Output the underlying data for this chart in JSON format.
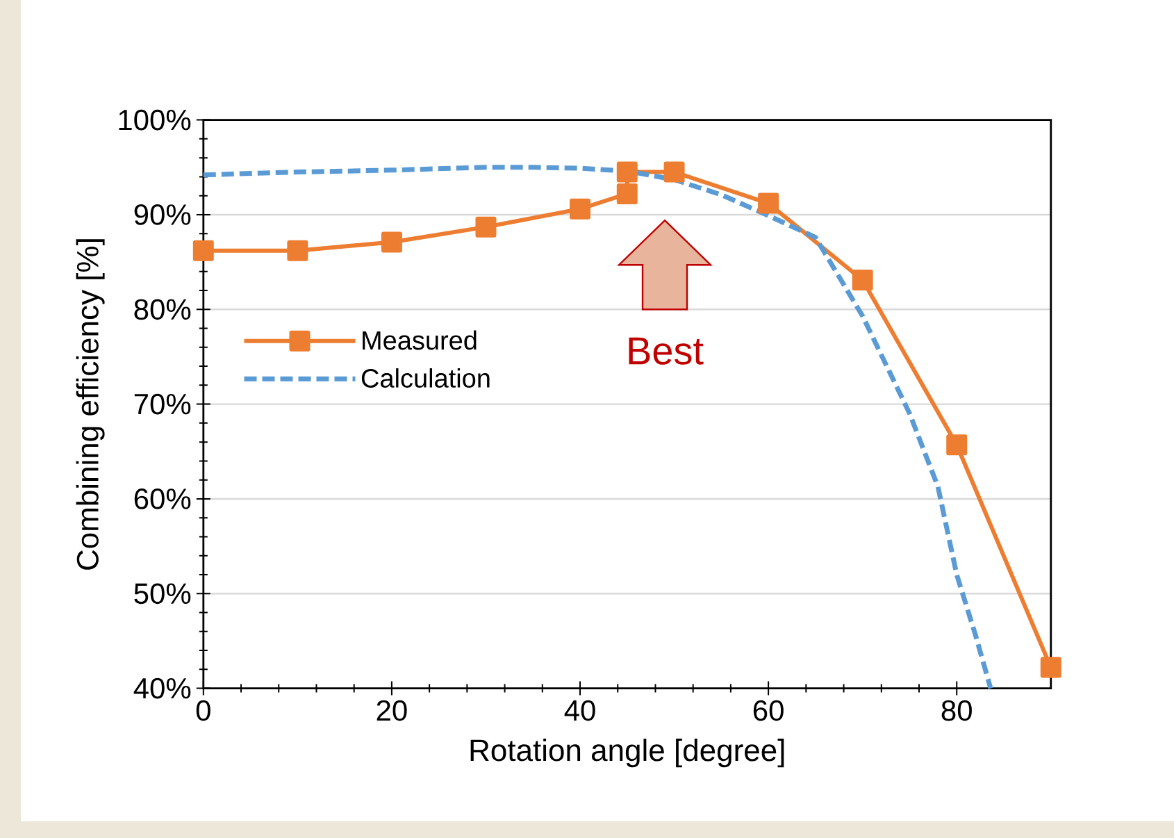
{
  "chart_data": {
    "type": "line",
    "xlabel": "Rotation angle [degree]",
    "ylabel": "Combining efficiency [%]",
    "xlim": [
      0,
      90
    ],
    "xticks": [
      0,
      20,
      40,
      60,
      80
    ],
    "ylim": [
      40,
      100
    ],
    "yticks": [
      {
        "value": 40,
        "label": "40%"
      },
      {
        "value": 50,
        "label": "50%"
      },
      {
        "value": 60,
        "label": "60%"
      },
      {
        "value": 70,
        "label": "70%"
      },
      {
        "value": 80,
        "label": "80%"
      },
      {
        "value": 90,
        "label": "90%"
      },
      {
        "value": 100,
        "label": "100%"
      }
    ],
    "grid": "y",
    "legend": "left",
    "series": [
      {
        "name": "Measured",
        "color": "#ed7d31",
        "marker": "square",
        "line_style": "solid",
        "x": [
          0,
          10,
          20,
          30,
          40,
          45,
          45,
          50,
          60,
          70,
          80,
          90
        ],
        "values": [
          86.2,
          86.2,
          87.1,
          88.7,
          90.6,
          92.2,
          94.5,
          94.5,
          91.2,
          83.1,
          65.7,
          42.2
        ]
      },
      {
        "name": "Calculation",
        "color": "#5b9bd5",
        "marker": "none",
        "line_style": "dashed",
        "x": [
          0,
          10,
          20,
          30,
          35,
          40,
          45,
          50,
          55,
          60,
          65,
          70,
          75,
          78,
          80,
          82,
          83.6
        ],
        "values": [
          94.2,
          94.5,
          94.7,
          95.0,
          95.0,
          94.9,
          94.6,
          93.7,
          92.1,
          89.9,
          87.6,
          79.3,
          69.0,
          61.3,
          52.0,
          45.6,
          40
        ]
      }
    ],
    "annotations": [
      "Best"
    ]
  }
}
